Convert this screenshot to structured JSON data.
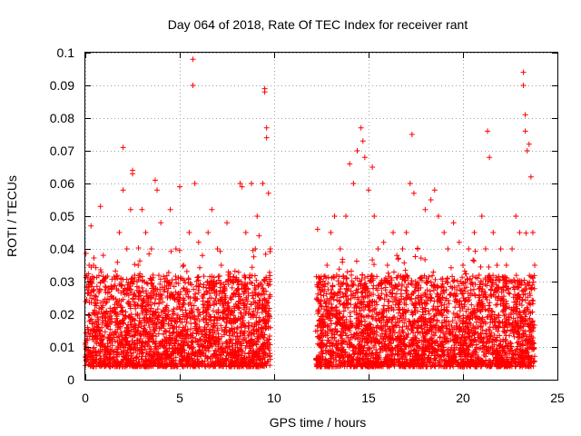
{
  "chart_data": {
    "type": "scatter",
    "title": "Day 064 of 2018, Rate Of TEC Index for receiver rant",
    "xlabel": "GPS time / hours",
    "ylabel": "ROTI / TECUs",
    "xlim": [
      0,
      25
    ],
    "ylim": [
      0,
      0.1
    ],
    "x_ticks": [
      0,
      5,
      10,
      15,
      20,
      25
    ],
    "x_tick_labels": [
      "0",
      "5",
      "10",
      "15",
      "20",
      "25"
    ],
    "y_ticks": [
      0,
      0.01,
      0.02,
      0.03,
      0.04,
      0.05,
      0.06,
      0.07,
      0.08,
      0.09,
      0.1
    ],
    "y_tick_labels": [
      "0",
      "0.01",
      "0.02",
      "0.03",
      "0.04",
      "0.05",
      "0.06",
      "0.07",
      "0.08",
      "0.09",
      "0.1"
    ],
    "grid": true,
    "marker": "+",
    "marker_color": "#ff0000",
    "data_gap_hours": [
      9.8,
      12.2
    ],
    "series": [
      {
        "name": "ROTI",
        "points": [
          [
            0.1,
            0.012
          ],
          [
            0.2,
            0.035
          ],
          [
            0.3,
            0.047
          ],
          [
            0.5,
            0.02
          ],
          [
            0.8,
            0.053
          ],
          [
            1.0,
            0.03
          ],
          [
            1.2,
            0.018
          ],
          [
            1.5,
            0.025
          ],
          [
            1.8,
            0.045
          ],
          [
            2.0,
            0.058
          ],
          [
            2.0,
            0.071
          ],
          [
            2.2,
            0.04
          ],
          [
            2.4,
            0.052
          ],
          [
            2.5,
            0.064
          ],
          [
            2.5,
            0.063
          ],
          [
            2.8,
            0.035
          ],
          [
            3.0,
            0.052
          ],
          [
            3.2,
            0.045
          ],
          [
            3.5,
            0.04
          ],
          [
            3.7,
            0.061
          ],
          [
            3.8,
            0.058
          ],
          [
            4.0,
            0.048
          ],
          [
            4.2,
            0.03
          ],
          [
            4.5,
            0.052
          ],
          [
            4.8,
            0.04
          ],
          [
            5.0,
            0.059
          ],
          [
            5.2,
            0.035
          ],
          [
            5.5,
            0.045
          ],
          [
            5.7,
            0.098
          ],
          [
            5.7,
            0.09
          ],
          [
            5.8,
            0.06
          ],
          [
            6.0,
            0.042
          ],
          [
            6.2,
            0.038
          ],
          [
            6.5,
            0.045
          ],
          [
            6.7,
            0.052
          ],
          [
            7.0,
            0.04
          ],
          [
            7.2,
            0.035
          ],
          [
            7.5,
            0.048
          ],
          [
            7.8,
            0.03
          ],
          [
            8.2,
            0.06
          ],
          [
            8.3,
            0.059
          ],
          [
            8.5,
            0.045
          ],
          [
            8.8,
            0.06
          ],
          [
            9.0,
            0.04
          ],
          [
            9.1,
            0.05
          ],
          [
            9.2,
            0.044
          ],
          [
            9.4,
            0.06
          ],
          [
            9.5,
            0.089
          ],
          [
            9.5,
            0.088
          ],
          [
            9.6,
            0.077
          ],
          [
            9.6,
            0.074
          ],
          [
            9.7,
            0.057
          ],
          [
            9.8,
            0.04
          ],
          [
            12.3,
            0.046
          ],
          [
            12.4,
            0.03
          ],
          [
            12.6,
            0.02
          ],
          [
            12.8,
            0.035
          ],
          [
            13.0,
            0.045
          ],
          [
            13.2,
            0.05
          ],
          [
            13.5,
            0.04
          ],
          [
            13.8,
            0.05
          ],
          [
            14.0,
            0.066
          ],
          [
            14.2,
            0.06
          ],
          [
            14.4,
            0.07
          ],
          [
            14.6,
            0.077
          ],
          [
            14.7,
            0.073
          ],
          [
            14.8,
            0.068
          ],
          [
            15.0,
            0.058
          ],
          [
            15.2,
            0.065
          ],
          [
            15.3,
            0.05
          ],
          [
            15.5,
            0.04
          ],
          [
            15.8,
            0.042
          ],
          [
            16.0,
            0.035
          ],
          [
            16.3,
            0.045
          ],
          [
            16.5,
            0.038
          ],
          [
            16.8,
            0.04
          ],
          [
            17.0,
            0.045
          ],
          [
            17.2,
            0.06
          ],
          [
            17.3,
            0.075
          ],
          [
            17.4,
            0.057
          ],
          [
            17.6,
            0.04
          ],
          [
            18.0,
            0.052
          ],
          [
            18.3,
            0.055
          ],
          [
            18.5,
            0.058
          ],
          [
            18.7,
            0.05
          ],
          [
            19.0,
            0.045
          ],
          [
            19.2,
            0.04
          ],
          [
            19.5,
            0.048
          ],
          [
            19.8,
            0.042
          ],
          [
            20.0,
            0.035
          ],
          [
            20.3,
            0.04
          ],
          [
            20.6,
            0.045
          ],
          [
            21.0,
            0.05
          ],
          [
            21.2,
            0.04
          ],
          [
            21.3,
            0.076
          ],
          [
            21.4,
            0.068
          ],
          [
            21.6,
            0.045
          ],
          [
            21.8,
            0.035
          ],
          [
            22.0,
            0.04
          ],
          [
            22.3,
            0.035
          ],
          [
            22.6,
            0.04
          ],
          [
            22.8,
            0.05
          ],
          [
            23.0,
            0.045
          ],
          [
            23.2,
            0.094
          ],
          [
            23.2,
            0.09
          ],
          [
            23.3,
            0.081
          ],
          [
            23.3,
            0.076
          ],
          [
            23.4,
            0.07
          ],
          [
            23.5,
            0.072
          ],
          [
            23.6,
            0.062
          ],
          [
            23.7,
            0.045
          ],
          [
            23.8,
            0.035
          ]
        ]
      }
    ]
  }
}
